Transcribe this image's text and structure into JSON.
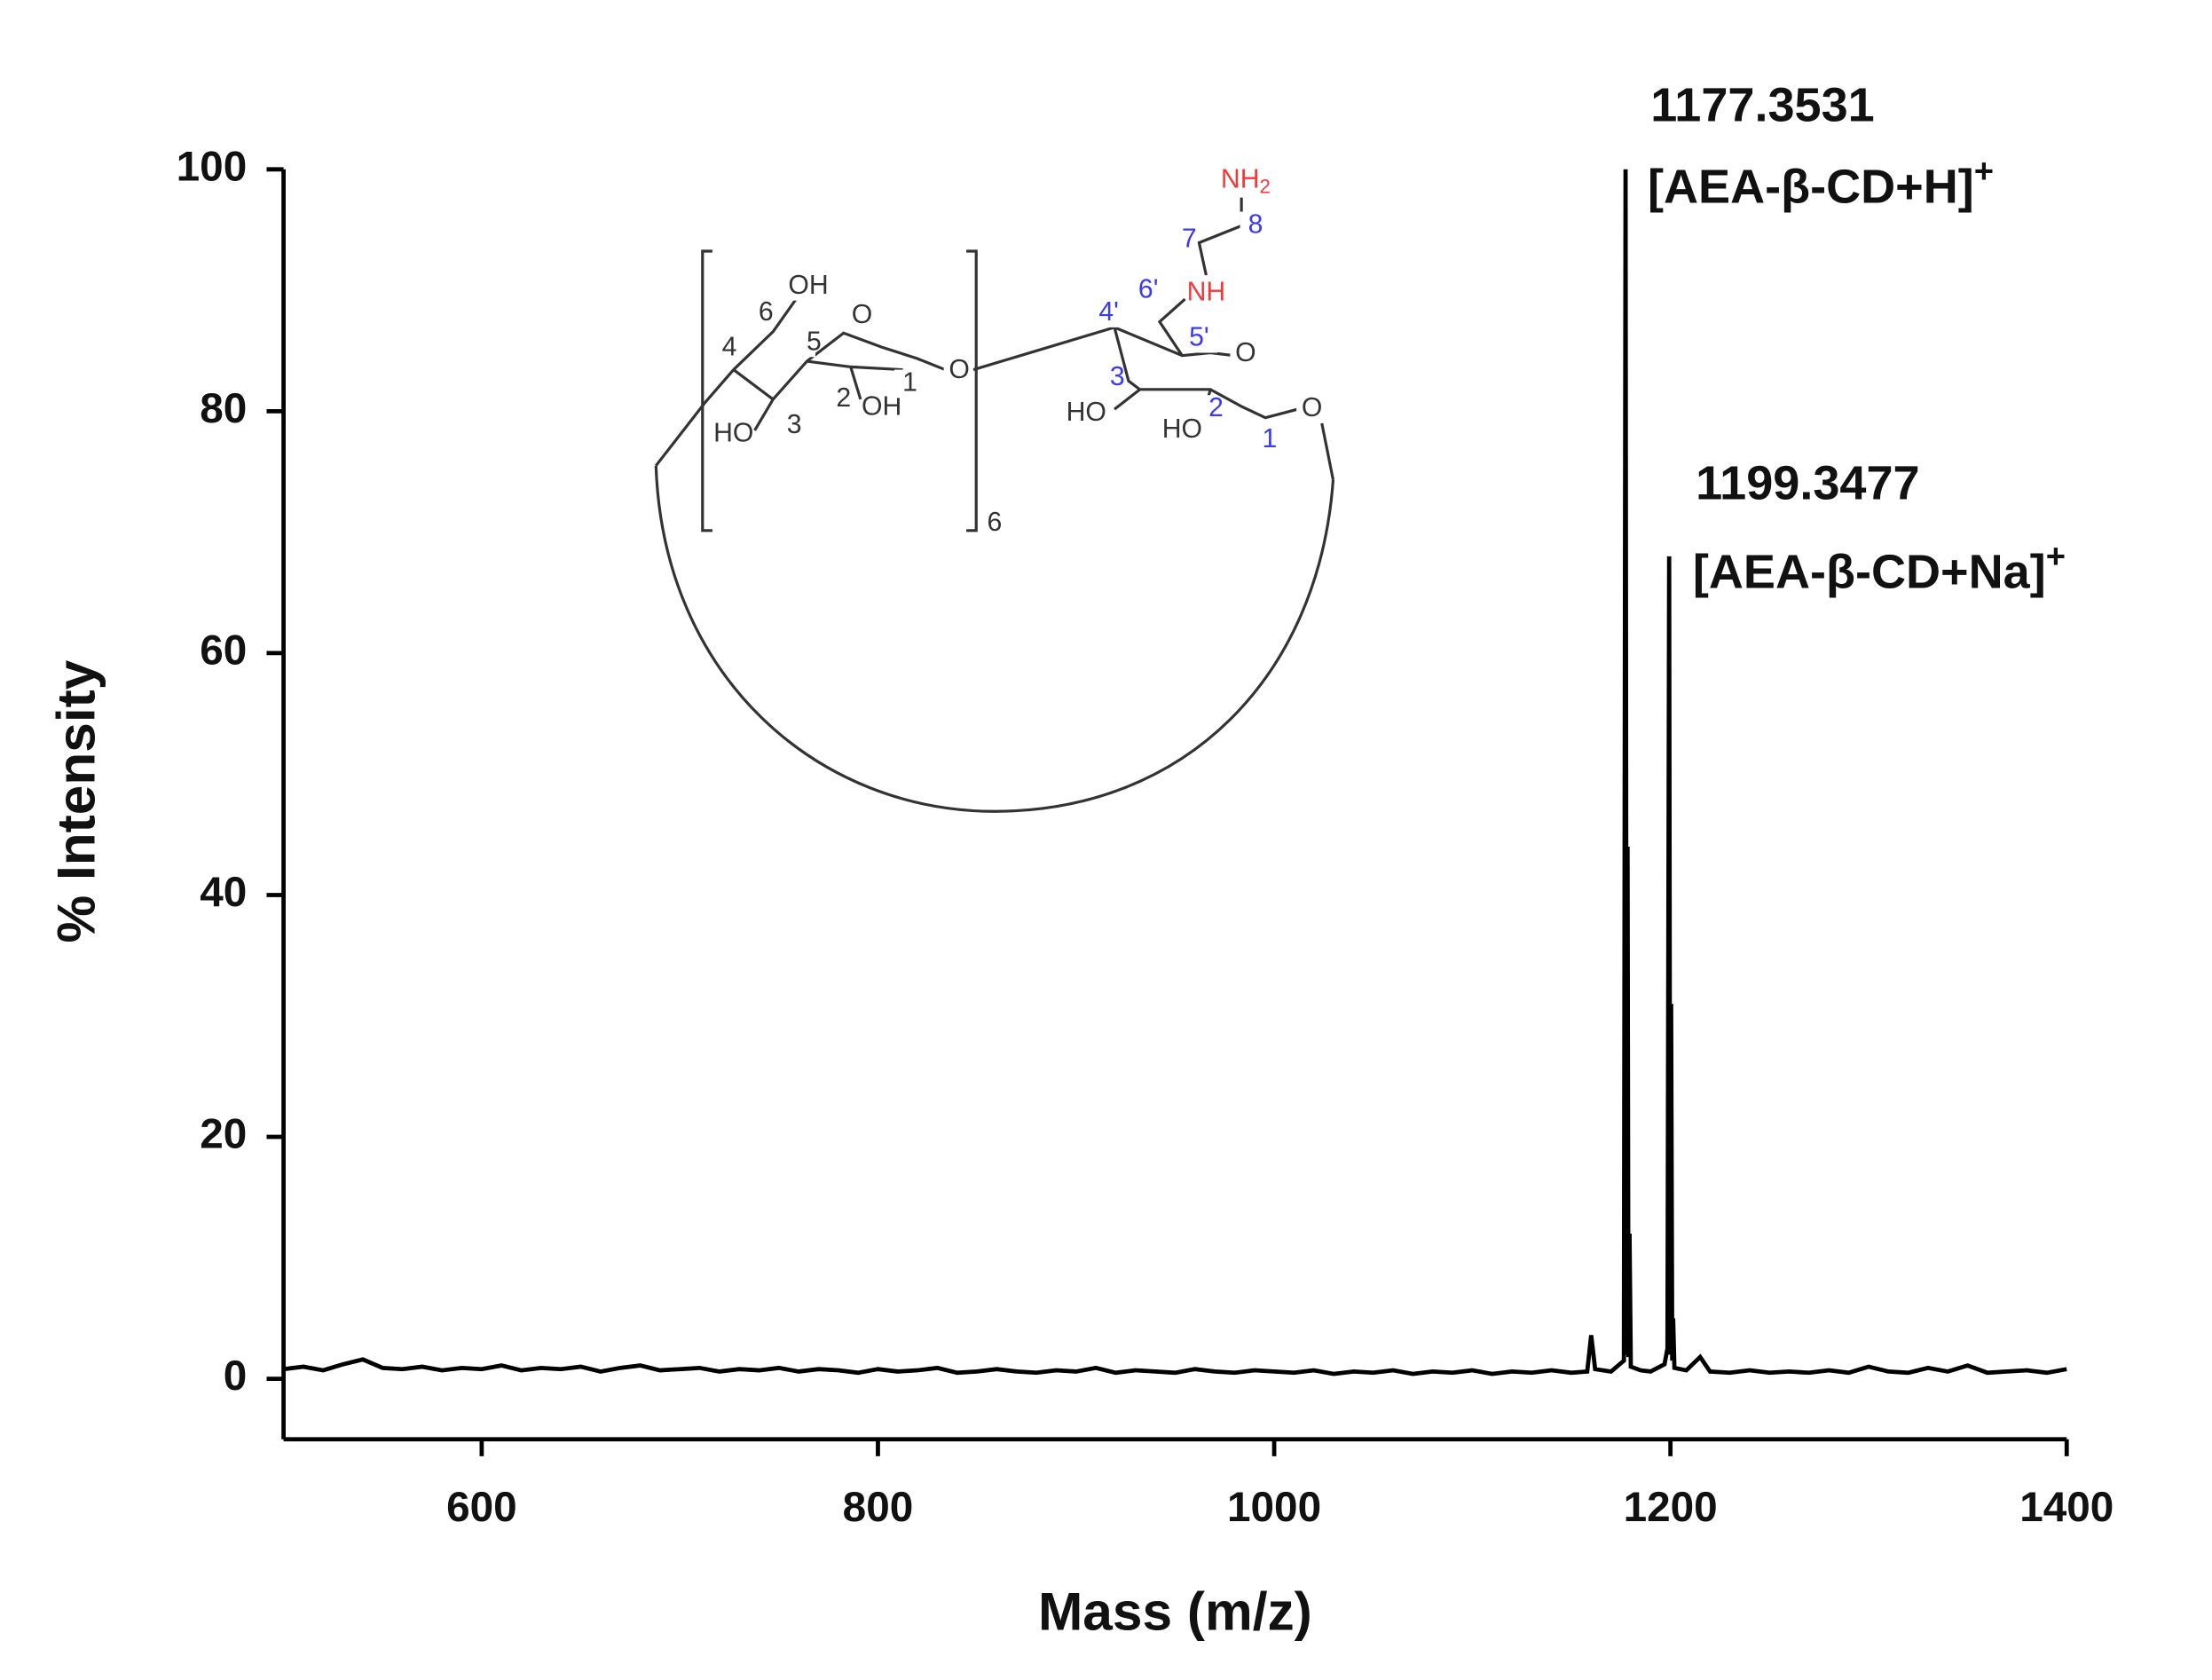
{
  "chart_data": {
    "type": "line",
    "xlabel": "Mass (m/z)",
    "ylabel": "% Intensity",
    "xlim": [
      500,
      1400
    ],
    "xticks": [
      600,
      800,
      1000,
      1200,
      1400
    ],
    "ylim": [
      -5,
      100
    ],
    "yticks": [
      0,
      20,
      40,
      60,
      80,
      100
    ],
    "color": "#000000",
    "x": [
      500,
      510,
      520,
      530,
      540,
      550,
      560,
      570,
      580,
      590,
      600,
      610,
      620,
      630,
      640,
      650,
      660,
      670,
      680,
      690,
      700,
      710,
      720,
      730,
      740,
      750,
      760,
      770,
      780,
      790,
      800,
      810,
      820,
      830,
      840,
      850,
      860,
      870,
      880,
      890,
      900,
      910,
      920,
      930,
      940,
      950,
      960,
      970,
      980,
      990,
      1000,
      1010,
      1020,
      1030,
      1040,
      1050,
      1060,
      1070,
      1080,
      1090,
      1100,
      1110,
      1120,
      1130,
      1140,
      1150,
      1158,
      1160,
      1162,
      1170,
      1176.5,
      1177.35,
      1177.9,
      1178.35,
      1178.8,
      1179.35,
      1180,
      1185,
      1190,
      1197,
      1198.5,
      1199.35,
      1199.9,
      1200.35,
      1200.9,
      1201.35,
      1202,
      1208,
      1215,
      1220,
      1230,
      1240,
      1250,
      1260,
      1270,
      1280,
      1290,
      1300,
      1310,
      1320,
      1330,
      1340,
      1350,
      1360,
      1370,
      1380,
      1390,
      1400
    ],
    "values": [
      0.8,
      1.0,
      0.7,
      1.2,
      1.6,
      0.9,
      0.8,
      1.0,
      0.7,
      0.9,
      0.8,
      1.1,
      0.7,
      0.9,
      0.8,
      1.0,
      0.6,
      0.9,
      1.1,
      0.7,
      0.8,
      0.9,
      0.6,
      0.8,
      0.7,
      0.9,
      0.6,
      0.8,
      0.7,
      0.5,
      0.8,
      0.6,
      0.7,
      0.9,
      0.5,
      0.6,
      0.8,
      0.6,
      0.5,
      0.7,
      0.6,
      0.9,
      0.5,
      0.7,
      0.6,
      0.5,
      0.8,
      0.6,
      0.5,
      0.7,
      0.6,
      0.5,
      0.7,
      0.4,
      0.6,
      0.5,
      0.7,
      0.4,
      0.6,
      0.5,
      0.7,
      0.4,
      0.6,
      0.5,
      0.7,
      0.5,
      0.6,
      3.6,
      0.8,
      0.6,
      1.5,
      100,
      2.0,
      44,
      1.8,
      12,
      1.0,
      0.7,
      0.6,
      1.2,
      2.5,
      68,
      2.0,
      31,
      1.5,
      5,
      0.9,
      0.7,
      1.8,
      0.6,
      0.5,
      0.7,
      0.5,
      0.6,
      0.5,
      0.7,
      0.5,
      1.0,
      0.6,
      0.5,
      0.9,
      0.6,
      1.1,
      0.5,
      0.6,
      0.7,
      0.5,
      0.8
    ],
    "annotations": [
      {
        "text": "1177.3531"
      },
      {
        "text": "[AEA-β-CD+H]",
        "sup": "+"
      },
      {
        "text": "1199.3477"
      },
      {
        "text": "[AEA-β-CD+Na]",
        "sup": "+"
      }
    ],
    "structure_labels": [
      {
        "text": "OH"
      },
      {
        "text": "6"
      },
      {
        "text": "O"
      },
      {
        "text": "4"
      },
      {
        "text": "5"
      },
      {
        "text": "2"
      },
      {
        "text": "OH"
      },
      {
        "text": "1"
      },
      {
        "text": "O"
      },
      {
        "text": "HO"
      },
      {
        "text": "3"
      },
      {
        "text": "6"
      },
      {
        "text": "4'"
      },
      {
        "text": "6'"
      },
      {
        "text": "NH"
      },
      {
        "text": "7"
      },
      {
        "text": "8"
      },
      {
        "text": "NH",
        "sub": "2"
      },
      {
        "text": "5'"
      },
      {
        "text": "O"
      },
      {
        "text": "3"
      },
      {
        "text": "HO"
      },
      {
        "text": "2"
      },
      {
        "text": "HO"
      },
      {
        "text": "1"
      },
      {
        "text": "O"
      }
    ]
  }
}
